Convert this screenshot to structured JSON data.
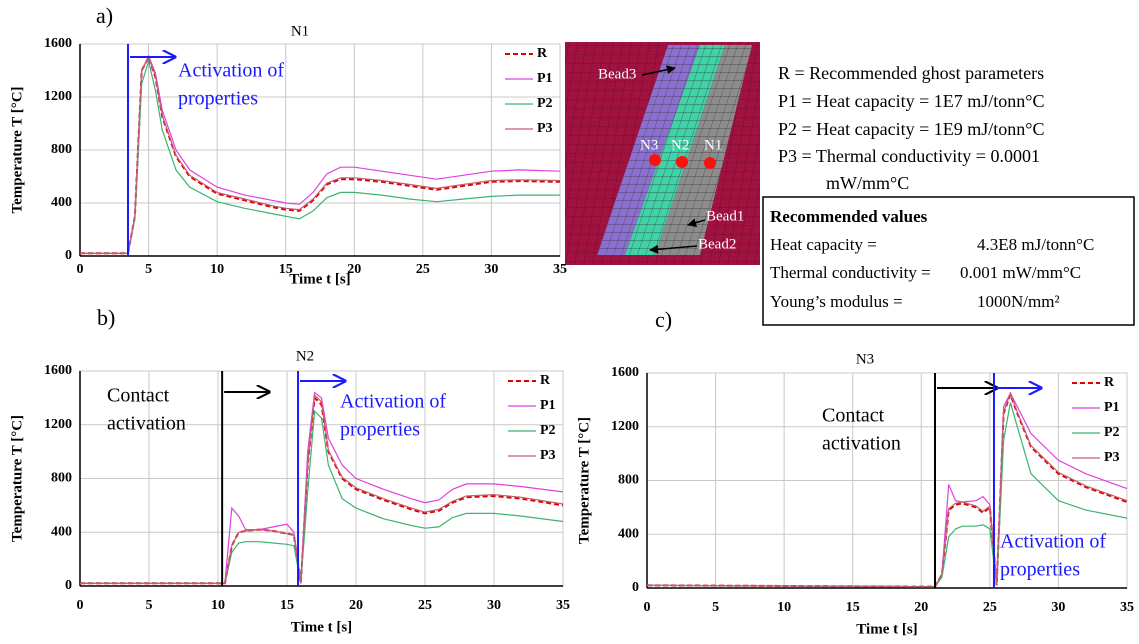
{
  "chart_data": [
    {
      "type": "line",
      "panel_label": "a)",
      "title": "N1",
      "xlabel": "Time t [s]",
      "ylabel": "Temperature T [°C]",
      "x": [
        0,
        3.5,
        4,
        4.5,
        5,
        5.5,
        6,
        7,
        8,
        10,
        12,
        14,
        15,
        16,
        17,
        18,
        19,
        20,
        22,
        24,
        26,
        28,
        30,
        32,
        35
      ],
      "series": [
        {
          "name": "R",
          "color": "#e00000",
          "line_style": "dashed",
          "values": [
            20,
            20,
            300,
            1400,
            1500,
            1350,
            1050,
            750,
            600,
            470,
            420,
            370,
            350,
            340,
            420,
            540,
            580,
            580,
            560,
            530,
            500,
            530,
            560,
            565,
            560
          ]
        },
        {
          "name": "P1",
          "color": "#e040e0",
          "line_style": "solid",
          "values": [
            20,
            20,
            300,
            1400,
            1510,
            1380,
            1100,
            800,
            650,
            520,
            460,
            420,
            400,
            390,
            480,
            620,
            670,
            670,
            640,
            610,
            580,
            610,
            640,
            650,
            640
          ]
        },
        {
          "name": "P2",
          "color": "#3cb371",
          "line_style": "solid",
          "values": [
            20,
            20,
            280,
            1300,
            1470,
            1250,
            950,
            650,
            520,
            410,
            360,
            320,
            300,
            280,
            340,
            440,
            480,
            480,
            460,
            430,
            410,
            430,
            450,
            460,
            460
          ]
        },
        {
          "name": "P3",
          "color": "#c06070",
          "line_style": "solid",
          "values": [
            20,
            20,
            300,
            1400,
            1500,
            1360,
            1060,
            760,
            610,
            480,
            430,
            380,
            360,
            350,
            430,
            550,
            590,
            590,
            570,
            540,
            510,
            540,
            570,
            575,
            570
          ]
        }
      ],
      "vlines": [
        {
          "x": 3.5,
          "color": "#1a1aff"
        }
      ],
      "annotations": [
        {
          "lines": [
            "Activation of",
            "properties"
          ],
          "color": "#1a1aff"
        }
      ],
      "xlim": [
        0,
        35
      ],
      "xticks": [
        0,
        5,
        10,
        15,
        20,
        25,
        30,
        35
      ],
      "ylim": [
        0,
        1600
      ],
      "yticks": [
        0,
        400,
        800,
        1200,
        1600
      ],
      "grid": true,
      "legend": "upper right"
    },
    {
      "type": "line",
      "panel_label": "b)",
      "title": "N2",
      "xlabel": "Time t [s]",
      "ylabel": "Temperature T [°C]",
      "x": [
        0,
        10,
        10.5,
        11,
        11.5,
        12,
        13,
        14,
        15,
        15.5,
        16,
        16.5,
        17,
        17.5,
        18,
        19,
        20,
        22,
        24,
        25,
        26,
        27,
        28,
        30,
        32,
        35
      ],
      "series": [
        {
          "name": "R",
          "color": "#e00000",
          "line_style": "dashed",
          "values": [
            20,
            20,
            20,
            300,
            400,
            410,
            420,
            410,
            390,
            380,
            20,
            900,
            1400,
            1350,
            1000,
            800,
            720,
            640,
            570,
            540,
            560,
            620,
            660,
            670,
            650,
            600
          ]
        },
        {
          "name": "P1",
          "color": "#e040e0",
          "line_style": "solid",
          "values": [
            20,
            20,
            20,
            580,
            520,
            420,
            420,
            440,
            460,
            400,
            20,
            1000,
            1440,
            1400,
            1100,
            900,
            800,
            720,
            650,
            620,
            640,
            720,
            760,
            760,
            740,
            700
          ]
        },
        {
          "name": "P2",
          "color": "#3cb371",
          "line_style": "solid",
          "values": [
            20,
            20,
            20,
            250,
            320,
            330,
            330,
            320,
            310,
            300,
            20,
            700,
            1300,
            1250,
            900,
            650,
            580,
            500,
            450,
            430,
            440,
            510,
            540,
            540,
            520,
            480
          ]
        },
        {
          "name": "P3",
          "color": "#c06070",
          "line_style": "solid",
          "values": [
            20,
            20,
            20,
            300,
            400,
            410,
            420,
            410,
            390,
            380,
            20,
            900,
            1420,
            1370,
            1010,
            810,
            730,
            650,
            580,
            550,
            570,
            630,
            670,
            680,
            660,
            610
          ]
        }
      ],
      "vlines": [
        {
          "x": 10.3,
          "color": "#000000"
        },
        {
          "x": 15.8,
          "color": "#1a1aff"
        }
      ],
      "annotations": [
        {
          "lines": [
            "Contact",
            "activation"
          ],
          "color": "#000000"
        },
        {
          "lines": [
            "Activation of",
            "properties"
          ],
          "color": "#1a1aff"
        }
      ],
      "xlim": [
        0,
        35
      ],
      "xticks": [
        0,
        5,
        10,
        15,
        20,
        25,
        30,
        35
      ],
      "ylim": [
        0,
        1600
      ],
      "yticks": [
        0,
        400,
        800,
        1200,
        1600
      ],
      "grid": true,
      "legend": "upper right"
    },
    {
      "type": "line",
      "panel_label": "c)",
      "title": "N3",
      "xlabel": "Time t [s]",
      "ylabel": "Temperature T [°C]",
      "x": [
        0,
        21,
        21.5,
        22,
        22.5,
        23,
        24,
        24.5,
        25,
        25.5,
        26,
        26.5,
        27,
        28,
        30,
        32,
        35
      ],
      "series": [
        {
          "name": "R",
          "color": "#e00000",
          "line_style": "dashed",
          "values": [
            20,
            10,
            100,
            580,
            620,
            630,
            600,
            560,
            600,
            20,
            1300,
            1440,
            1300,
            1050,
            850,
            750,
            640
          ]
        },
        {
          "name": "P1",
          "color": "#e040e0",
          "line_style": "solid",
          "values": [
            20,
            10,
            100,
            770,
            650,
            640,
            650,
            680,
            620,
            20,
            1350,
            1450,
            1350,
            1150,
            950,
            850,
            740
          ]
        },
        {
          "name": "P2",
          "color": "#3cb371",
          "line_style": "solid",
          "values": [
            20,
            10,
            80,
            380,
            440,
            460,
            460,
            470,
            440,
            20,
            1100,
            1380,
            1200,
            850,
            650,
            580,
            520
          ]
        },
        {
          "name": "P3",
          "color": "#c06070",
          "line_style": "solid",
          "values": [
            20,
            10,
            100,
            590,
            630,
            640,
            610,
            570,
            610,
            20,
            1310,
            1450,
            1310,
            1060,
            860,
            760,
            650
          ]
        }
      ],
      "vlines": [
        {
          "x": 21,
          "color": "#000000"
        },
        {
          "x": 25.3,
          "color": "#1a1aff"
        }
      ],
      "annotations": [
        {
          "lines": [
            "Contact",
            "activation"
          ],
          "color": "#000000"
        },
        {
          "lines": [
            "Activation of",
            "properties"
          ],
          "color": "#1a1aff"
        }
      ],
      "xlim": [
        0,
        35
      ],
      "xticks": [
        0,
        5,
        10,
        15,
        20,
        25,
        30,
        35
      ],
      "ylim": [
        0,
        1600
      ],
      "yticks": [
        0,
        400,
        800,
        1200,
        1600
      ],
      "grid": true,
      "legend": "upper right"
    }
  ],
  "mesh": {
    "labels": [
      "Bead3",
      "N3",
      "N2",
      "N1",
      "Bead1",
      "Bead2"
    ]
  },
  "definitions": [
    "R =  Recommended ghost parameters",
    "P1 = Heat capacity = 1E7 mJ/tonn°C",
    "P2 = Heat capacity = 1E9 mJ/tonn°C",
    "P3 = Thermal conductivity = 0.0001",
    "mW/mm°C"
  ],
  "recommended_values": {
    "title": "Recommended values",
    "rows": [
      [
        "Heat capacity =",
        "4.3E8 mJ/tonn°C"
      ],
      [
        "Thermal conductivity =",
        "0.001 mW/mm°C"
      ],
      [
        "Young’s modulus =",
        "1000N/mm²"
      ]
    ]
  }
}
